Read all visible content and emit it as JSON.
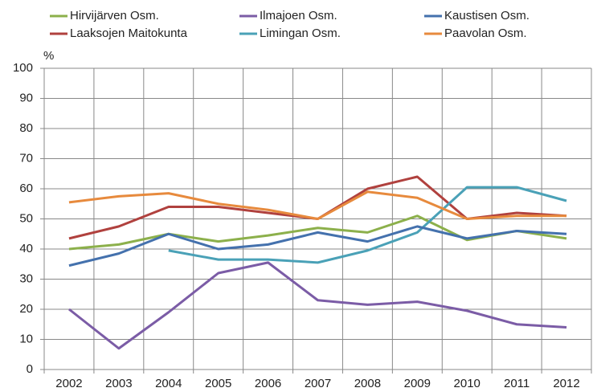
{
  "chart_data": {
    "type": "line",
    "y_label": "%",
    "categories": [
      "2002",
      "2003",
      "2004",
      "2005",
      "2006",
      "2007",
      "2008",
      "2009",
      "2010",
      "2011",
      "2012"
    ],
    "series": [
      {
        "name": "Hirvijärven Osm.",
        "color": "#8cb04b",
        "values": [
          40,
          41.5,
          45,
          42.5,
          44.5,
          47,
          45.5,
          51,
          43,
          46,
          43.5
        ]
      },
      {
        "name": "Laaksojen Maitokunta",
        "color": "#b0413e",
        "values": [
          43.5,
          47.5,
          54,
          54,
          52,
          50,
          60,
          64,
          50,
          52,
          51
        ]
      },
      {
        "name": "Ilmajoen Osm.",
        "color": "#7b5ca6",
        "values": [
          20,
          7,
          19,
          32,
          35.5,
          23,
          21.5,
          22.5,
          19.5,
          15,
          14
        ]
      },
      {
        "name": "Limingan Osm.",
        "color": "#4aa1b7",
        "values": [
          null,
          null,
          39.5,
          36.5,
          36.5,
          35.5,
          39.5,
          45.5,
          60.5,
          60.5,
          56
        ]
      },
      {
        "name": "Kaustisen Osm.",
        "color": "#4471ad",
        "values": [
          34.5,
          38.5,
          45,
          40,
          41.5,
          45.5,
          42.5,
          47.5,
          43.5,
          46,
          45
        ]
      },
      {
        "name": "Paavolan Osm.",
        "color": "#e78a3d",
        "values": [
          55.5,
          57.5,
          58.5,
          55,
          53,
          50,
          59,
          57,
          50,
          51,
          51
        ]
      }
    ],
    "ylim": [
      0,
      100
    ],
    "yticks": [
      0,
      10,
      20,
      30,
      40,
      50,
      60,
      70,
      80,
      90,
      100
    ],
    "grid": true
  }
}
